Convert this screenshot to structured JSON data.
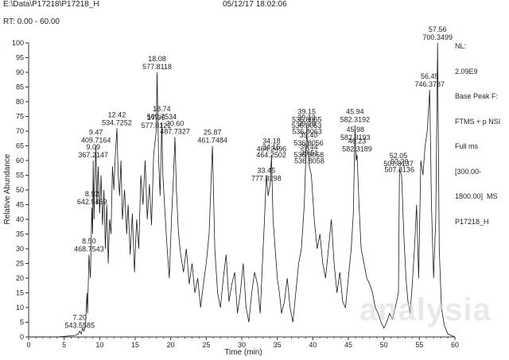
{
  "header": {
    "path": "E:\\Data\\P17218\\P17218_H",
    "datetime": "05/12/17 18:02:06"
  },
  "rt_range": "RT: 0.00 - 60.00",
  "info_lines": [
    "NL:",
    "2.09E9",
    "Base Peak F:",
    "FTMS + p NSI",
    "Full ms",
    "[300.00-",
    "1800.00]  MS",
    "P17218_H"
  ],
  "watermark": "analysia",
  "chart_data": {
    "type": "line",
    "title": "",
    "xlabel": "Time (min)",
    "ylabel": "Relative Abundance",
    "xlim": [
      0,
      60
    ],
    "ylim": [
      0,
      100
    ],
    "x_ticks": [
      0,
      5,
      10,
      15,
      20,
      25,
      30,
      35,
      40,
      45,
      50,
      55,
      60
    ],
    "y_ticks": [
      0,
      5,
      10,
      15,
      20,
      25,
      30,
      35,
      40,
      45,
      50,
      55,
      60,
      65,
      70,
      75,
      80,
      85,
      90,
      95,
      100
    ],
    "series": [
      {
        "x": [
          0,
          4,
          6.5,
          7.0,
          7.2,
          7.4,
          7.6,
          7.8,
          8.0,
          8.2,
          8.3,
          8.5,
          8.7,
          8.9,
          9.0,
          9.09,
          9.2,
          9.3,
          9.47,
          9.6,
          9.8,
          10.0,
          10.2,
          10.4,
          10.6,
          10.8,
          11.0,
          11.2,
          11.4,
          11.6,
          11.8,
          12.0,
          12.2,
          12.42,
          12.6,
          12.8,
          13.0,
          13.2,
          13.5,
          13.8,
          14.0,
          14.3,
          14.6,
          14.9,
          15.2,
          15.5,
          15.8,
          16.1,
          16.4,
          16.7,
          17.0,
          17.3,
          17.6,
          17.96,
          18.08,
          18.3,
          18.5,
          18.74,
          18.9,
          19.2,
          19.5,
          19.8,
          20.1,
          20.4,
          20.6,
          20.8,
          21.1,
          21.4,
          21.8,
          22.2,
          22.6,
          23.0,
          23.4,
          23.8,
          24.2,
          24.6,
          25.0,
          25.4,
          25.87,
          26.2,
          26.6,
          27.0,
          27.4,
          27.8,
          28.2,
          28.6,
          29.0,
          29.4,
          29.8,
          30.2,
          30.6,
          31.0,
          31.4,
          31.8,
          32.2,
          32.6,
          33.0,
          33.2,
          33.45,
          33.7,
          34.0,
          34.15,
          34.18,
          34.4,
          34.7,
          35.0,
          35.3,
          35.6,
          36.0,
          36.4,
          36.8,
          37.2,
          37.6,
          38.0,
          38.4,
          38.8,
          39.13,
          39.15,
          39.18,
          39.4,
          39.44,
          39.51,
          39.8,
          40.2,
          40.6,
          41.0,
          41.4,
          41.8,
          42.2,
          42.6,
          43.0,
          43.4,
          43.8,
          44.2,
          44.6,
          45.0,
          45.4,
          45.7,
          45.94,
          45.98,
          46.1,
          46.23,
          46.5,
          46.8,
          47.2,
          47.6,
          48.0,
          48.4,
          48.8,
          49.2,
          49.6,
          50.0,
          50.4,
          50.8,
          51.2,
          51.6,
          52.05,
          52.2,
          52.5,
          52.8,
          53.1,
          53.4,
          53.7,
          54.0,
          54.3,
          54.6,
          54.9,
          55.2,
          55.5,
          55.8,
          56.1,
          56.45,
          56.7,
          57.0,
          57.3,
          57.56,
          57.8,
          58.1,
          58.5,
          59.0,
          60.0
        ],
        "y": [
          0,
          0,
          0.5,
          1,
          2,
          1,
          3,
          2,
          4,
          15,
          8,
          28,
          20,
          44,
          35,
          60,
          40,
          52,
          65,
          45,
          58,
          42,
          55,
          38,
          50,
          30,
          45,
          25,
          40,
          35,
          58,
          50,
          62,
          71,
          55,
          48,
          60,
          40,
          50,
          35,
          45,
          28,
          42,
          22,
          40,
          30,
          55,
          45,
          60,
          40,
          52,
          38,
          62,
          70,
          90,
          60,
          48,
          73,
          55,
          42,
          30,
          20,
          40,
          55,
          68,
          50,
          35,
          28,
          22,
          30,
          18,
          25,
          15,
          20,
          10,
          18,
          25,
          35,
          65,
          30,
          15,
          10,
          20,
          28,
          12,
          18,
          22,
          8,
          15,
          25,
          10,
          5,
          15,
          22,
          18,
          8,
          30,
          40,
          55,
          48,
          52,
          60,
          62,
          40,
          30,
          20,
          15,
          8,
          12,
          20,
          10,
          5,
          15,
          25,
          30,
          45,
          70,
          72,
          68,
          64,
          60,
          58,
          55,
          40,
          30,
          35,
          25,
          20,
          30,
          40,
          25,
          15,
          22,
          12,
          10,
          20,
          30,
          42,
          72,
          66,
          60,
          62,
          45,
          30,
          25,
          20,
          18,
          15,
          10,
          8,
          5,
          3,
          5,
          8,
          6,
          10,
          15,
          57,
          55,
          35,
          20,
          12,
          8,
          18,
          30,
          45,
          20,
          60,
          55,
          65,
          70,
          84,
          45,
          20,
          40,
          100,
          30,
          10,
          4,
          1,
          0
        ]
      }
    ],
    "annotations": [
      {
        "rt": "7.20",
        "mz": "543.5585",
        "x": 7.2,
        "y": 2
      },
      {
        "rt": "8.50",
        "mz": "468.7543",
        "x": 8.5,
        "y": 28
      },
      {
        "rt": "8.92",
        "mz": "642.9469",
        "x": 8.92,
        "y": 44
      },
      {
        "rt": "9.09",
        "mz": "367.2147",
        "x": 9.09,
        "y": 60
      },
      {
        "rt": "9.47",
        "mz": "409.7164",
        "x": 9.47,
        "y": 65
      },
      {
        "rt": "12.42",
        "mz": "534.7252",
        "x": 12.42,
        "y": 71
      },
      {
        "rt": "17.96",
        "mz": "577.8121",
        "x": 17.96,
        "y": 70
      },
      {
        "rt": "18.08",
        "mz": "577.8118",
        "x": 18.08,
        "y": 90
      },
      {
        "rt": "18.74",
        "mz": "569.7534",
        "x": 18.74,
        "y": 73
      },
      {
        "rt": "20.60",
        "mz": "487.7327",
        "x": 20.6,
        "y": 68
      },
      {
        "rt": "25.87",
        "mz": "461.7484",
        "x": 25.87,
        "y": 65
      },
      {
        "rt": "34.18",
        "mz": "464.2496",
        "x": 34.18,
        "y": 62
      },
      {
        "rt": "34.15",
        "mz": "464.2502",
        "x": 34.15,
        "y": 60
      },
      {
        "rt": "33.45",
        "mz": "777.8298",
        "x": 33.45,
        "y": 52
      },
      {
        "rt": "39.13",
        "mz": "536.8063",
        "x": 39.13,
        "y": 70
      },
      {
        "rt": "39.15",
        "mz": "536.8065",
        "x": 39.15,
        "y": 72
      },
      {
        "rt": "39.18",
        "mz": "536.8063",
        "x": 39.18,
        "y": 68
      },
      {
        "rt": "39.40",
        "mz": "536.8056",
        "x": 39.4,
        "y": 64
      },
      {
        "rt": "39.44",
        "mz": "536.8058",
        "x": 39.44,
        "y": 60
      },
      {
        "rt": "39.51",
        "mz": "536.8058",
        "x": 39.51,
        "y": 58
      },
      {
        "rt": "45.94",
        "mz": "582.3192",
        "x": 45.94,
        "y": 72
      },
      {
        "rt": "45.98",
        "mz": "582.3193",
        "x": 45.98,
        "y": 66
      },
      {
        "rt": "46.23",
        "mz": "582.3189",
        "x": 46.23,
        "y": 62
      },
      {
        "rt": "52.05",
        "mz": "507.8137",
        "x": 52.05,
        "y": 57
      },
      {
        "rt": "52.20",
        "mz": "507.8136",
        "x": 52.2,
        "y": 55
      },
      {
        "rt": "56.45",
        "mz": "746.3787",
        "x": 56.45,
        "y": 84
      },
      {
        "rt": "57.56",
        "mz": "700.3499",
        "x": 57.56,
        "y": 100
      }
    ]
  }
}
